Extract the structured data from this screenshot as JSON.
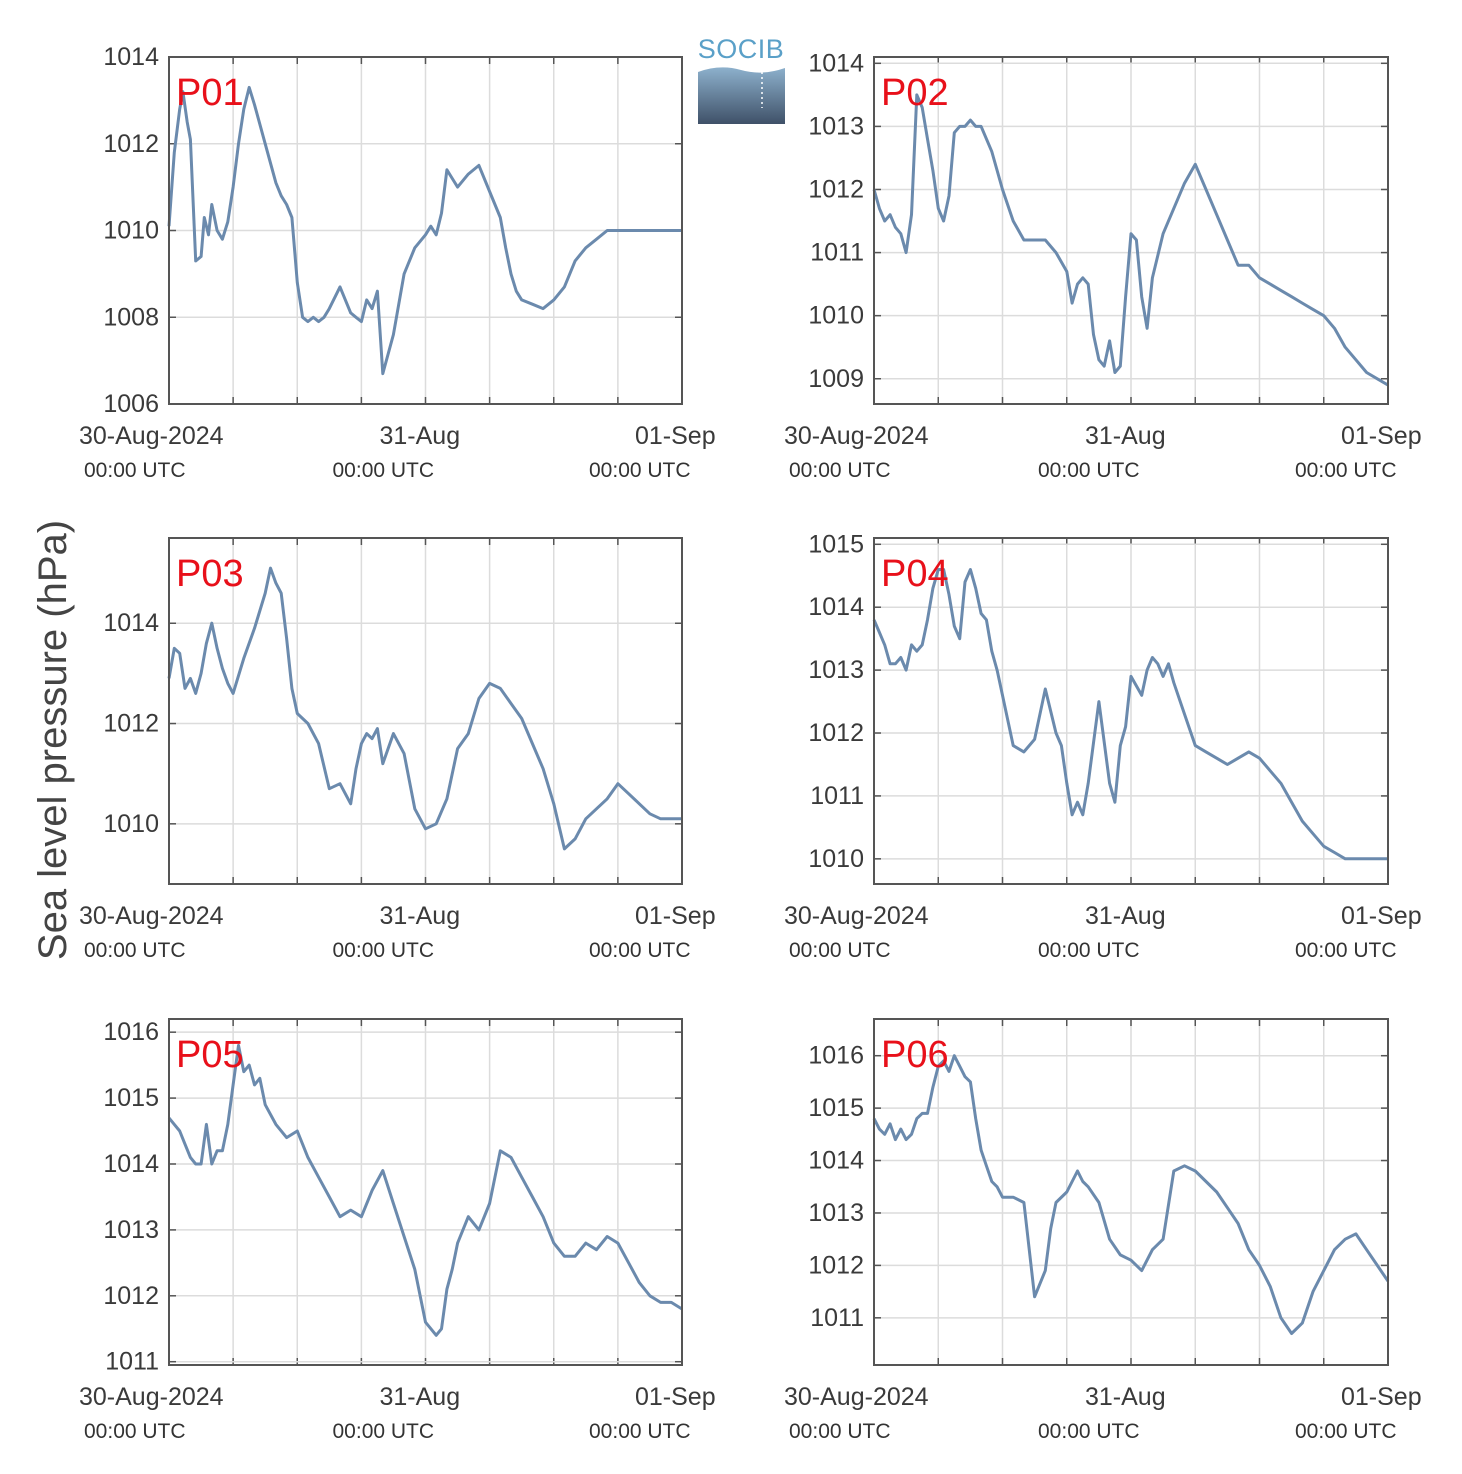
{
  "ylabel": "Sea level pressure (hPa)",
  "logo": {
    "text": "SOCIB",
    "icon": "socib-logo-icon"
  },
  "colors": {
    "line": "#6b8aad",
    "panel_label": "#e8101a",
    "grid": "#dcdcdc",
    "axis": "#555555"
  },
  "x_ticks": [
    {
      "label": "30-Aug-2024",
      "sub": "00:00 UTC"
    },
    {
      "label": "31-Aug",
      "sub": "00:00 UTC"
    },
    {
      "label": "01-Sep",
      "sub": "00:00 UTC"
    }
  ],
  "chart_data": [
    {
      "type": "line",
      "title": "P01",
      "xlabel": "",
      "ylabel": "Sea level pressure (hPa)",
      "x_unit": "hours since 30-Aug-2024 00:00 UTC",
      "xlim": [
        0,
        48
      ],
      "ylim": [
        1006,
        1014
      ],
      "yticks": [
        "1006",
        "1008",
        "1010",
        "1012",
        "1014"
      ],
      "grid": true,
      "series": [
        {
          "x": [
            0,
            0.5,
            1,
            1.3,
            1.7,
            2,
            2.5,
            3,
            3.3,
            3.7,
            4,
            4.5,
            5,
            5.5,
            6,
            6.5,
            7,
            7.5,
            8,
            9,
            10,
            10.5,
            11,
            11.5,
            12,
            12.5,
            13,
            13.5,
            14,
            14.5,
            15,
            16,
            17,
            17.5,
            18,
            18.5,
            19,
            19.5,
            20,
            21,
            22,
            23,
            24,
            24.5,
            25,
            25.5,
            26,
            26.5,
            27,
            28,
            29,
            30,
            31,
            31.5,
            32,
            32.5,
            33,
            34,
            35,
            36,
            37,
            38,
            39,
            40,
            41,
            42,
            43,
            44,
            45,
            46,
            47,
            48
          ],
          "y": [
            1010.1,
            1011.8,
            1012.8,
            1013.2,
            1012.5,
            1012.1,
            1009.3,
            1009.4,
            1010.3,
            1009.9,
            1010.6,
            1010.0,
            1009.8,
            1010.2,
            1011.0,
            1012.0,
            1012.8,
            1013.3,
            1012.9,
            1012.0,
            1011.1,
            1010.8,
            1010.6,
            1010.3,
            1008.8,
            1008.0,
            1007.9,
            1008.0,
            1007.9,
            1008.0,
            1008.2,
            1008.7,
            1008.1,
            1008.0,
            1007.9,
            1008.4,
            1008.2,
            1008.6,
            1006.7,
            1007.6,
            1009.0,
            1009.6,
            1009.9,
            1010.1,
            1009.9,
            1010.4,
            1011.4,
            1011.2,
            1011.0,
            1011.3,
            1011.5,
            1010.9,
            1010.3,
            1009.6,
            1009.0,
            1008.6,
            1008.4,
            1008.3,
            1008.2,
            1008.4,
            1008.7,
            1009.3,
            1009.6,
            1009.8,
            1010.0,
            1010.0,
            1010.0,
            1010.0,
            1010.0,
            1010.0,
            1010.0,
            1010.0
          ]
        }
      ]
    },
    {
      "type": "line",
      "title": "P02",
      "xlabel": "",
      "ylabel": "Sea level pressure (hPa)",
      "x_unit": "hours since 30-Aug-2024 00:00 UTC",
      "xlim": [
        0,
        48
      ],
      "ylim": [
        1008.6,
        1014.1
      ],
      "yticks": [
        "1009",
        "1010",
        "1011",
        "1012",
        "1013",
        "1014"
      ],
      "grid": true,
      "series": [
        {
          "x": [
            0,
            0.5,
            1,
            1.5,
            2,
            2.5,
            3,
            3.5,
            4,
            4.5,
            5,
            5.5,
            6,
            6.5,
            7,
            7.5,
            8,
            8.5,
            9,
            9.5,
            10,
            11,
            12,
            13,
            14,
            15,
            16,
            17,
            18,
            18.5,
            19,
            19.5,
            20,
            20.5,
            21,
            21.5,
            22,
            22.5,
            23,
            23.5,
            24,
            24.5,
            25,
            25.5,
            26,
            27,
            28,
            29,
            30,
            31,
            32,
            33,
            34,
            35,
            36,
            37,
            38,
            39,
            40,
            41,
            42,
            43,
            44,
            45,
            46,
            47,
            48
          ],
          "y": [
            1012.0,
            1011.7,
            1011.5,
            1011.6,
            1011.4,
            1011.3,
            1011.0,
            1011.6,
            1013.5,
            1013.3,
            1012.8,
            1012.3,
            1011.7,
            1011.5,
            1011.9,
            1012.9,
            1013.0,
            1013.0,
            1013.1,
            1013.0,
            1013.0,
            1012.6,
            1012.0,
            1011.5,
            1011.2,
            1011.2,
            1011.2,
            1011.0,
            1010.7,
            1010.2,
            1010.5,
            1010.6,
            1010.5,
            1009.7,
            1009.3,
            1009.2,
            1009.6,
            1009.1,
            1009.2,
            1010.3,
            1011.3,
            1011.2,
            1010.3,
            1009.8,
            1010.6,
            1011.3,
            1011.7,
            1012.1,
            1012.4,
            1012.0,
            1011.6,
            1011.2,
            1010.8,
            1010.8,
            1010.6,
            1010.5,
            1010.4,
            1010.3,
            1010.2,
            1010.1,
            1010.0,
            1009.8,
            1009.5,
            1009.3,
            1009.1,
            1009.0,
            1008.9
          ]
        }
      ]
    },
    {
      "type": "line",
      "title": "P03",
      "xlabel": "",
      "ylabel": "Sea level pressure (hPa)",
      "x_unit": "hours since 30-Aug-2024 00:00 UTC",
      "xlim": [
        0,
        48
      ],
      "ylim": [
        1008.8,
        1015.7
      ],
      "yticks": [
        "1010",
        "1012",
        "1014"
      ],
      "grid": true,
      "series": [
        {
          "x": [
            0,
            0.5,
            1,
            1.5,
            2,
            2.5,
            3,
            3.5,
            4,
            4.5,
            5,
            5.5,
            6,
            7,
            8,
            9,
            9.5,
            10,
            10.5,
            11,
            11.5,
            12,
            13,
            14,
            15,
            16,
            16.5,
            17,
            17.5,
            18,
            18.5,
            19,
            19.5,
            20,
            21,
            22,
            23,
            24,
            25,
            26,
            27,
            28,
            29,
            30,
            31,
            32,
            33,
            34,
            35,
            36,
            37,
            38,
            39,
            40,
            41,
            42,
            43,
            44,
            45,
            46,
            47,
            48
          ],
          "y": [
            1012.9,
            1013.5,
            1013.4,
            1012.7,
            1012.9,
            1012.6,
            1013.0,
            1013.6,
            1014.0,
            1013.5,
            1013.1,
            1012.8,
            1012.6,
            1013.3,
            1013.9,
            1014.6,
            1015.1,
            1014.8,
            1014.6,
            1013.7,
            1012.7,
            1012.2,
            1012.0,
            1011.6,
            1010.7,
            1010.8,
            1010.6,
            1010.4,
            1011.1,
            1011.6,
            1011.8,
            1011.7,
            1011.9,
            1011.2,
            1011.8,
            1011.4,
            1010.3,
            1009.9,
            1010.0,
            1010.5,
            1011.5,
            1011.8,
            1012.5,
            1012.8,
            1012.7,
            1012.4,
            1012.1,
            1011.6,
            1011.1,
            1010.4,
            1009.5,
            1009.7,
            1010.1,
            1010.3,
            1010.5,
            1010.8,
            1010.6,
            1010.4,
            1010.2,
            1010.1,
            1010.1,
            1010.1
          ]
        }
      ]
    },
    {
      "type": "line",
      "title": "P04",
      "xlabel": "",
      "ylabel": "Sea level pressure (hPa)",
      "x_unit": "hours since 30-Aug-2024 00:00 UTC",
      "xlim": [
        0,
        48
      ],
      "ylim": [
        1009.6,
        1015.1
      ],
      "yticks": [
        "1010",
        "1011",
        "1012",
        "1013",
        "1014",
        "1015"
      ],
      "grid": true,
      "series": [
        {
          "x": [
            0,
            0.5,
            1,
            1.5,
            2,
            2.5,
            3,
            3.5,
            4,
            4.5,
            5,
            5.5,
            6,
            6.5,
            7,
            7.5,
            8,
            8.5,
            9,
            9.5,
            10,
            10.5,
            11,
            11.5,
            12,
            13,
            14,
            15,
            16,
            17,
            17.5,
            18,
            18.5,
            19,
            19.5,
            20,
            21,
            22,
            22.5,
            23,
            23.5,
            24,
            25,
            25.5,
            26,
            26.5,
            27,
            27.5,
            28,
            29,
            30,
            31,
            32,
            33,
            34,
            35,
            36,
            37,
            38,
            39,
            40,
            41,
            42,
            43,
            44,
            45,
            46,
            47,
            48
          ],
          "y": [
            1013.8,
            1013.6,
            1013.4,
            1013.1,
            1013.1,
            1013.2,
            1013.0,
            1013.4,
            1013.3,
            1013.4,
            1013.8,
            1014.3,
            1014.6,
            1014.6,
            1014.2,
            1013.7,
            1013.5,
            1014.4,
            1014.6,
            1014.3,
            1013.9,
            1013.8,
            1013.3,
            1013.0,
            1012.6,
            1011.8,
            1011.7,
            1011.9,
            1012.7,
            1012.0,
            1011.8,
            1011.2,
            1010.7,
            1010.9,
            1010.7,
            1011.2,
            1012.5,
            1011.2,
            1010.9,
            1011.8,
            1012.1,
            1012.9,
            1012.6,
            1013.0,
            1013.2,
            1013.1,
            1012.9,
            1013.1,
            1012.8,
            1012.3,
            1011.8,
            1011.7,
            1011.6,
            1011.5,
            1011.6,
            1011.7,
            1011.6,
            1011.4,
            1011.2,
            1010.9,
            1010.6,
            1010.4,
            1010.2,
            1010.1,
            1010.0,
            1010.0,
            1010.0,
            1010.0,
            1010.0
          ]
        }
      ]
    },
    {
      "type": "line",
      "title": "P05",
      "xlabel": "",
      "ylabel": "Sea level pressure (hPa)",
      "x_unit": "hours since 30-Aug-2024 00:00 UTC",
      "xlim": [
        0,
        48
      ],
      "ylim": [
        1010.95,
        1016.2
      ],
      "yticks": [
        "1011",
        "1012",
        "1013",
        "1014",
        "1015",
        "1016"
      ],
      "grid": true,
      "series": [
        {
          "x": [
            0,
            0.5,
            1,
            1.5,
            2,
            2.5,
            3,
            3.5,
            4,
            4.5,
            5,
            5.5,
            6,
            6.5,
            7,
            7.5,
            8,
            8.5,
            9,
            10,
            11,
            12,
            13,
            14,
            15,
            16,
            17,
            18,
            19,
            20,
            21,
            22,
            23,
            24,
            25,
            25.5,
            26,
            26.5,
            27,
            28,
            29,
            30,
            31,
            32,
            33,
            34,
            35,
            36,
            37,
            38,
            39,
            40,
            41,
            42,
            43,
            44,
            45,
            46,
            47,
            48
          ],
          "y": [
            1014.7,
            1014.6,
            1014.5,
            1014.3,
            1014.1,
            1014.0,
            1014.0,
            1014.6,
            1014.0,
            1014.2,
            1014.2,
            1014.6,
            1015.2,
            1015.8,
            1015.4,
            1015.5,
            1015.2,
            1015.3,
            1014.9,
            1014.6,
            1014.4,
            1014.5,
            1014.1,
            1013.8,
            1013.5,
            1013.2,
            1013.3,
            1013.2,
            1013.6,
            1013.9,
            1013.4,
            1012.9,
            1012.4,
            1011.6,
            1011.4,
            1011.5,
            1012.1,
            1012.4,
            1012.8,
            1013.2,
            1013.0,
            1013.4,
            1014.2,
            1014.1,
            1013.8,
            1013.5,
            1013.2,
            1012.8,
            1012.6,
            1012.6,
            1012.8,
            1012.7,
            1012.9,
            1012.8,
            1012.5,
            1012.2,
            1012.0,
            1011.9,
            1011.9,
            1011.8
          ]
        }
      ]
    },
    {
      "type": "line",
      "title": "P06",
      "xlabel": "",
      "ylabel": "Sea level pressure (hPa)",
      "x_unit": "hours since 30-Aug-2024 00:00 UTC",
      "xlim": [
        0,
        48
      ],
      "ylim": [
        1010.1,
        1016.7
      ],
      "yticks": [
        "1011",
        "1012",
        "1013",
        "1014",
        "1015",
        "1016"
      ],
      "grid": true,
      "series": [
        {
          "x": [
            0,
            0.5,
            1,
            1.5,
            2,
            2.5,
            3,
            3.5,
            4,
            4.5,
            5,
            5.5,
            6,
            6.5,
            7,
            7.5,
            8,
            8.5,
            9,
            9.5,
            10,
            10.5,
            11,
            11.5,
            12,
            13,
            14,
            15,
            16,
            16.5,
            17,
            18,
            19,
            19.5,
            20,
            21,
            22,
            23,
            24,
            25,
            26,
            27,
            28,
            29,
            30,
            31,
            32,
            33,
            34,
            35,
            36,
            37,
            38,
            39,
            40,
            41,
            42,
            43,
            44,
            45,
            46,
            47,
            48
          ],
          "y": [
            1014.8,
            1014.6,
            1014.5,
            1014.7,
            1014.4,
            1014.6,
            1014.4,
            1014.5,
            1014.8,
            1014.9,
            1014.9,
            1015.4,
            1015.8,
            1015.9,
            1015.7,
            1016.0,
            1015.8,
            1015.6,
            1015.5,
            1014.8,
            1014.2,
            1013.9,
            1013.6,
            1013.5,
            1013.3,
            1013.3,
            1013.2,
            1011.4,
            1011.9,
            1012.7,
            1013.2,
            1013.4,
            1013.8,
            1013.6,
            1013.5,
            1013.2,
            1012.5,
            1012.2,
            1012.1,
            1011.9,
            1012.3,
            1012.5,
            1013.8,
            1013.9,
            1013.8,
            1013.6,
            1013.4,
            1013.1,
            1012.8,
            1012.3,
            1012.0,
            1011.6,
            1011.0,
            1010.7,
            1010.9,
            1011.5,
            1011.9,
            1012.3,
            1012.5,
            1012.6,
            1012.3,
            1012.0,
            1011.7
          ]
        }
      ]
    }
  ]
}
